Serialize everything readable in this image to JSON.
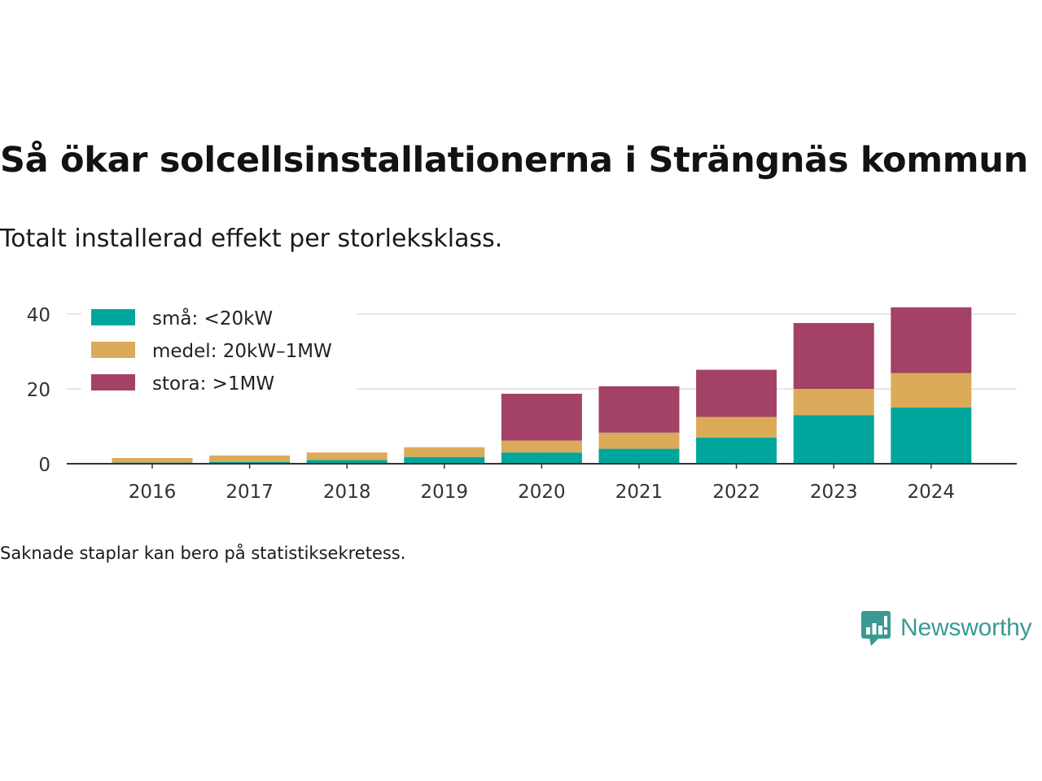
{
  "header": {
    "title": "Så ökar solcellsinstallationerna i Strängnäs kommun",
    "subtitle": "Totalt installerad effekt per storleksklass."
  },
  "footer": {
    "note": "Saknade staplar kan bero på statistiksekretess.",
    "brand_name": "Newsworthy",
    "brand_icon": "newsworthy-logo-icon",
    "brand_color": "#3a9a93"
  },
  "chart_data": {
    "type": "bar",
    "stacked": true,
    "categories": [
      "2016",
      "2017",
      "2018",
      "2019",
      "2020",
      "2021",
      "2022",
      "2023",
      "2024"
    ],
    "series": [
      {
        "name": "små: <20kW",
        "color": "#00a69b",
        "values": [
          0.3,
          0.5,
          1.0,
          1.8,
          3.0,
          4.0,
          7.0,
          13.0,
          15.0
        ]
      },
      {
        "name": "medel: 20kW–1MW",
        "color": "#dbab5a",
        "values": [
          1.2,
          1.7,
          2.0,
          2.6,
          3.2,
          4.3,
          5.5,
          7.0,
          9.2
        ]
      },
      {
        "name": "stora: >1MW",
        "color": "#a34167",
        "values": [
          0,
          0,
          0,
          0,
          12.5,
          12.4,
          12.6,
          17.6,
          17.6
        ]
      }
    ],
    "yticks": [
      0,
      20,
      40
    ],
    "ylim": [
      0,
      42
    ],
    "grid": true,
    "legend_position": "top-left",
    "xlabel": "",
    "ylabel": ""
  }
}
